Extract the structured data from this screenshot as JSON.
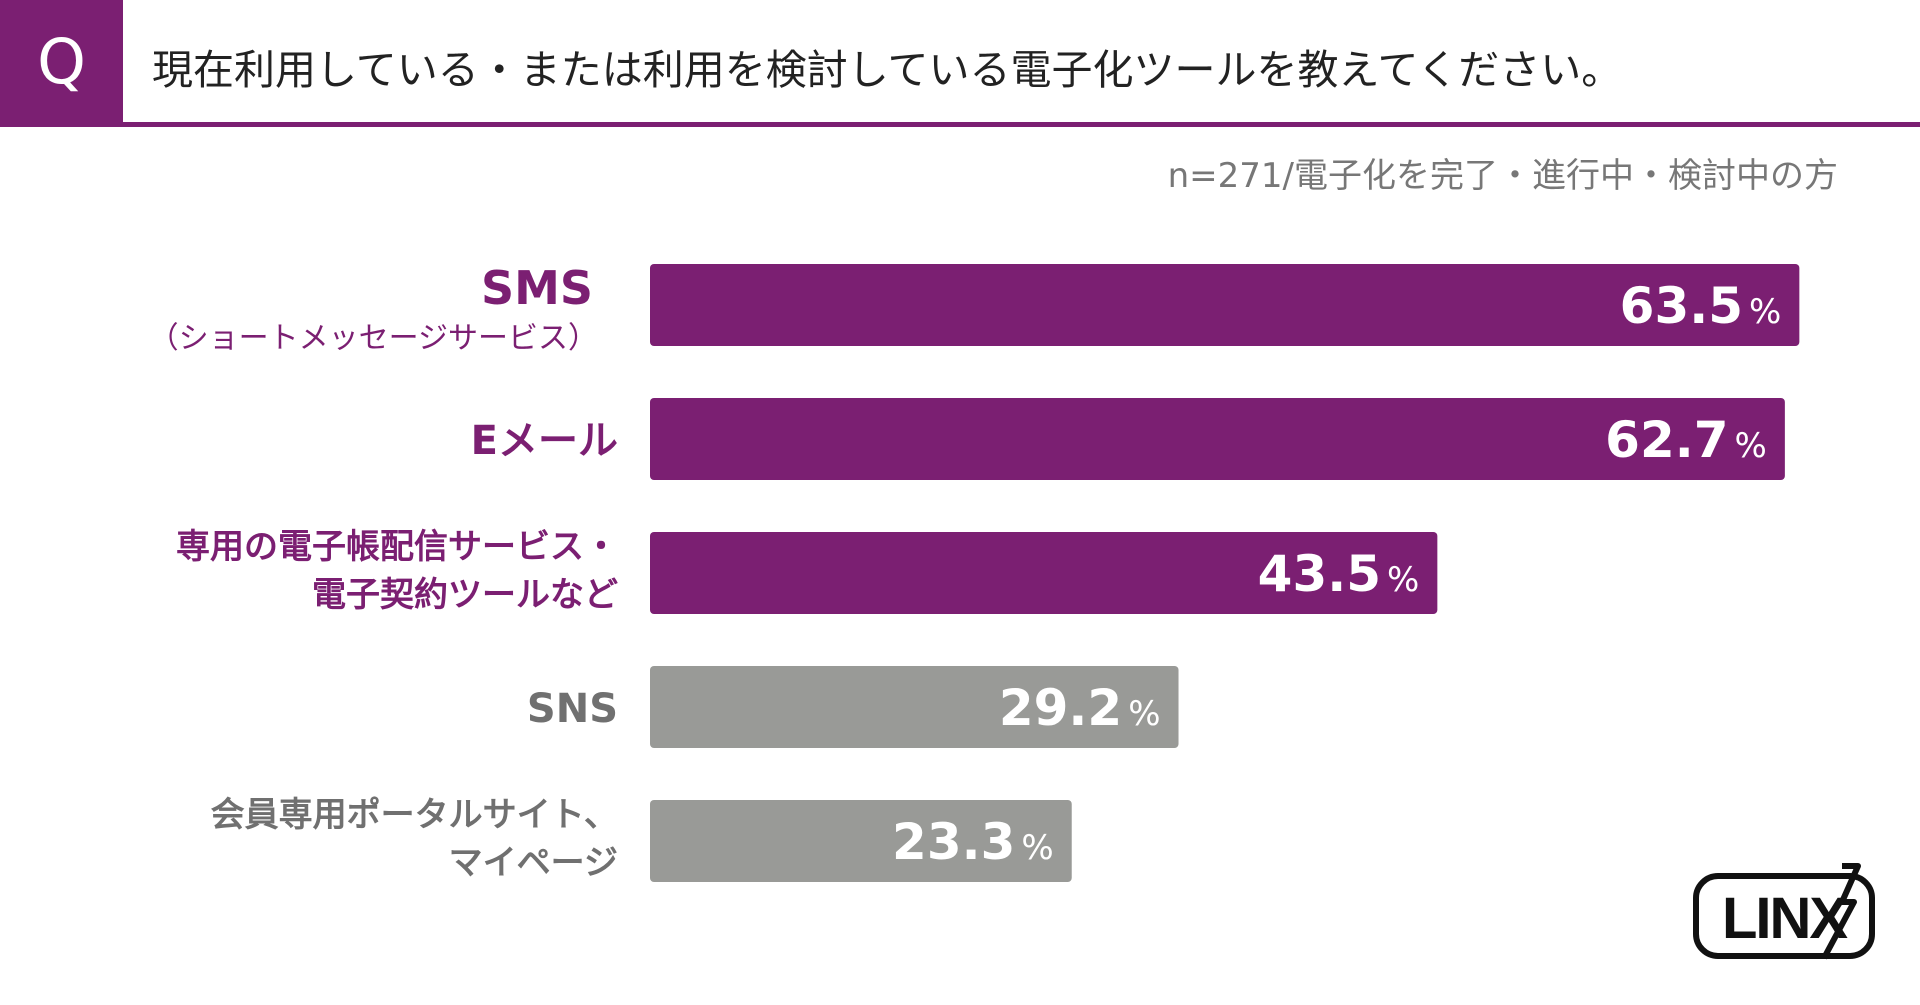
{
  "question": {
    "badge": "Q",
    "text": "現在利用している・または利用を検討している電子化ツールを教えてください。"
  },
  "sample_note": "n=271/電子化を完了・進行中・検討中の方",
  "logo": {
    "text": "LINX"
  },
  "colors": {
    "accent": "#7b1f72",
    "gray": "#999a97",
    "label_purple": "#7b1f72",
    "label_gray": "#707070"
  },
  "chart_data": {
    "type": "bar",
    "orientation": "horizontal",
    "unit": "%",
    "xlim": [
      0,
      70
    ],
    "categories": [
      {
        "lines": [
          "SMS",
          "（ショートメッセージサービス）"
        ],
        "highlight": true
      },
      {
        "lines": [
          "Eメール"
        ],
        "highlight": true
      },
      {
        "lines": [
          "専用の電子帳配信サービス・",
          "電子契約ツールなど"
        ],
        "highlight": true
      },
      {
        "lines": [
          "SNS"
        ],
        "highlight": false
      },
      {
        "lines": [
          "会員専用ポータルサイト、",
          "マイページ"
        ],
        "highlight": false
      }
    ],
    "values": [
      63.5,
      62.7,
      43.5,
      29.2,
      23.3
    ],
    "value_labels": [
      "63.5",
      "62.7",
      "43.5",
      "29.2",
      "23.3"
    ]
  }
}
